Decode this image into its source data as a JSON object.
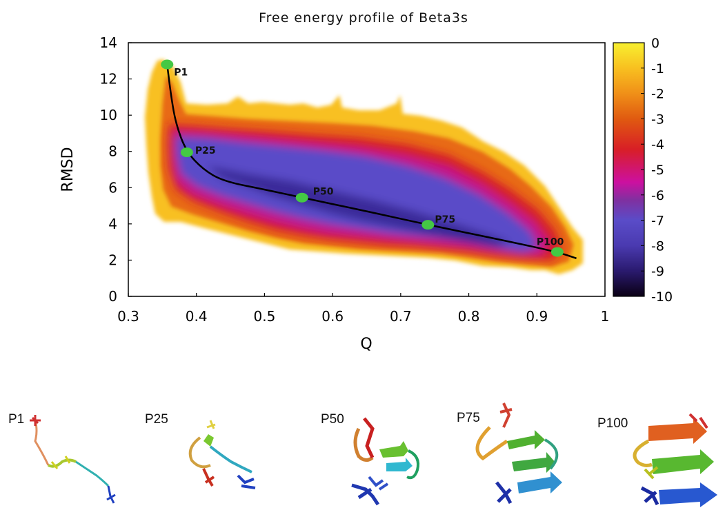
{
  "chart_data": {
    "type": "heatmap",
    "title": "Free energy profile of Beta3s",
    "xlabel": "Q",
    "ylabel": "RMSD",
    "xlim": [
      0.3,
      1.0
    ],
    "ylim": [
      0,
      14
    ],
    "x_ticks": [
      "0.3",
      "0.4",
      "0.5",
      "0.6",
      "0.7",
      "0.8",
      "0.9",
      "1"
    ],
    "y_ticks": [
      "0",
      "2",
      "4",
      "6",
      "8",
      "10",
      "12",
      "14"
    ],
    "x_tick_values": [
      0.3,
      0.4,
      0.5,
      0.6,
      0.7,
      0.8,
      0.9,
      1.0
    ],
    "y_tick_values": [
      0,
      2,
      4,
      6,
      8,
      10,
      12,
      14
    ],
    "colorbar": {
      "range": [
        -10,
        0
      ],
      "ticks": [
        "0",
        "-1",
        "-2",
        "-3",
        "-4",
        "-5",
        "-6",
        "-7",
        "-8",
        "-9",
        "-10"
      ],
      "tick_values": [
        0,
        -1,
        -2,
        -3,
        -4,
        -5,
        -6,
        -7,
        -8,
        -9,
        -10
      ],
      "colormap": [
        "#0a0014",
        "#2a1a6e",
        "#4a3ab0",
        "#5a4cc8",
        "#8030a0",
        "#cc10a0",
        "#d81f26",
        "#e05a10",
        "#f09018",
        "#f8c020",
        "#f8f030"
      ]
    },
    "path": {
      "color": "#000000",
      "points": [
        [
          0.357,
          12.8
        ],
        [
          0.363,
          11.0
        ],
        [
          0.37,
          9.5
        ],
        [
          0.385,
          8.0
        ],
        [
          0.41,
          7.0
        ],
        [
          0.44,
          6.35
        ],
        [
          0.5,
          5.9
        ],
        [
          0.555,
          5.45
        ],
        [
          0.65,
          4.7
        ],
        [
          0.74,
          3.95
        ],
        [
          0.85,
          3.1
        ],
        [
          0.93,
          2.45
        ],
        [
          0.958,
          2.1
        ]
      ]
    },
    "landmarks": [
      {
        "label": "P1",
        "x": 0.357,
        "y": 12.8
      },
      {
        "label": "P25",
        "x": 0.386,
        "y": 7.95
      },
      {
        "label": "P50",
        "x": 0.555,
        "y": 5.45
      },
      {
        "label": "P75",
        "x": 0.74,
        "y": 3.95
      },
      {
        "label": "P100",
        "x": 0.93,
        "y": 2.45
      }
    ],
    "landmark_color": "#44c844"
  },
  "structures": [
    {
      "label": "P1",
      "icon": "unfolded-peptide-icon"
    },
    {
      "label": "P25",
      "icon": "partially-folded-peptide-icon"
    },
    {
      "label": "P50",
      "icon": "beta-hairpin-forming-icon"
    },
    {
      "label": "P75",
      "icon": "beta-sheet-forming-icon"
    },
    {
      "label": "P100",
      "icon": "folded-beta-sheet-icon"
    }
  ]
}
